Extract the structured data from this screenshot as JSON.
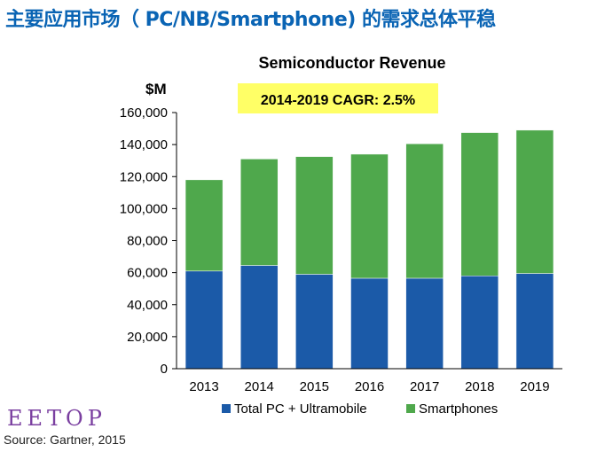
{
  "slide_title": "主要应用市场（ PC/NB/Smartphone) 的需求总体平稳",
  "watermark": "EETOP",
  "source": "Source: Gartner, 2015",
  "colors": {
    "title": "#0a64b4",
    "pc_series": "#1b5aa8",
    "smartphone_series": "#4fa84c",
    "cagr_box": "#ffff66"
  },
  "chart_data": {
    "type": "bar",
    "stacked": true,
    "title": "Semiconductor Revenue",
    "ylabel": "$M",
    "annotation": "2014-2019 CAGR: 2.5%",
    "categories": [
      "2013",
      "2014",
      "2015",
      "2016",
      "2017",
      "2018",
      "2019"
    ],
    "ylim": [
      0,
      160000
    ],
    "yticks": [
      0,
      20000,
      40000,
      60000,
      80000,
      100000,
      120000,
      140000,
      160000
    ],
    "ytick_labels": [
      "0",
      "20,000",
      "40,000",
      "60,000",
      "80,000",
      "100,000",
      "120,000",
      "140,000",
      "160,000"
    ],
    "legend_position": "bottom",
    "grid": false,
    "series": [
      {
        "name": "Total PC + Ultramobile",
        "color": "#1b5aa8",
        "values": [
          61000,
          64500,
          59000,
          56500,
          56500,
          58000,
          59500
        ]
      },
      {
        "name": "Smartphones",
        "color": "#4fa84c",
        "values": [
          57000,
          66500,
          73500,
          77500,
          84000,
          89500,
          89500
        ]
      }
    ]
  }
}
